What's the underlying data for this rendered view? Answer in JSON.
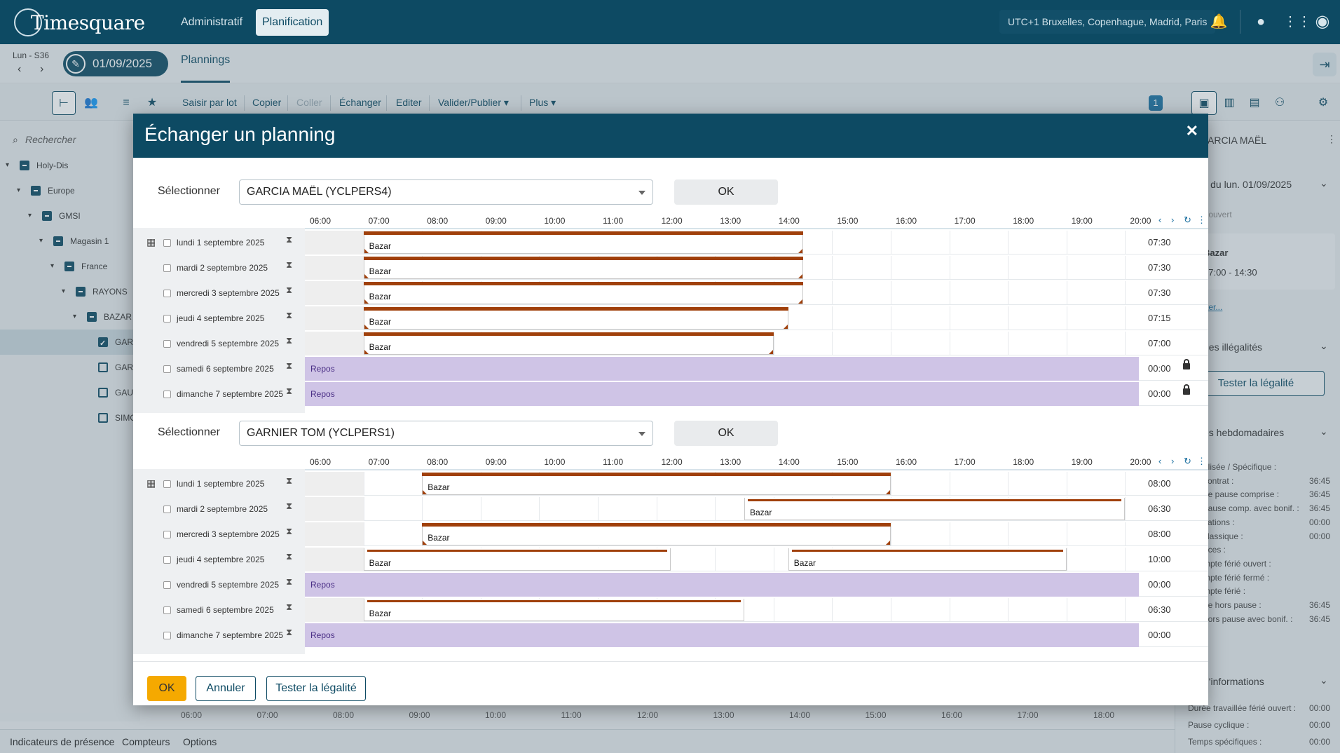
{
  "app": {
    "logo": "Timesquare",
    "nav": [
      "Administratif",
      "Planification"
    ],
    "timezone": "UTC+1 Bruxelles, Copenhague, Madrid, Paris"
  },
  "subbar": {
    "week_label": "Lun - S36",
    "date": "01/09/2025",
    "tab": "Plannings"
  },
  "toolbar": {
    "links": [
      "Saisir par lot",
      "Copier",
      "Coller",
      "Échanger",
      "Editer",
      "Valider/Publier",
      "Plus"
    ],
    "badge": "1"
  },
  "left": {
    "search_placeholder": "Rechercher",
    "tree": [
      "Holy-Dis",
      "Europe",
      "GMSI",
      "Magasin 1",
      "France",
      "RAYONS",
      "BAZAR",
      "GAR",
      "GAR",
      "GAU",
      "SIMO"
    ]
  },
  "right": {
    "person": "ARCIA MAËL",
    "day_header": "il du lun. 01/09/2025",
    "day_sub": "r ouvert",
    "shift_name": "Bazar",
    "shift_time": "07:00 - 14:30",
    "link": "ter...",
    "illeg_header": "des illégalités",
    "test_btn": "Tester la légalité",
    "weekly_header": "es hebdomadaires",
    "weekly_rows": [
      {
        "label": "alisée / Spécifique :",
        "value": ""
      },
      {
        "label": "contrat :",
        "value": "36:45"
      },
      {
        "label": "ée pause comprise :",
        "value": "36:45"
      },
      {
        "label": "pause comp. avec bonif. :",
        "value": "36:45"
      },
      {
        "label": "cations :",
        "value": "00:00"
      },
      {
        "label": "classique :",
        "value": "00:00"
      },
      {
        "label": "nces :",
        "value": ""
      },
      {
        "label": "mpte férié ouvert :",
        "value": ""
      },
      {
        "label": "mpte férié fermé :",
        "value": ""
      },
      {
        "label": "mpte férié :",
        "value": ""
      },
      {
        "label": "ée hors pause :",
        "value": "36:45"
      },
      {
        "label": "hors pause avec bonif. :",
        "value": "36:45"
      }
    ],
    "info_header": "d'informations",
    "info_rows": [
      {
        "label": "Durée travaillée férié ouvert :",
        "value": "00:00"
      },
      {
        "label": "Pause cyclique :",
        "value": "00:00"
      },
      {
        "label": "Temps spécifiques :",
        "value": "00:00"
      }
    ]
  },
  "bottom": {
    "axis": [
      "06:00",
      "07:00",
      "08:00",
      "09:00",
      "10:00",
      "11:00",
      "12:00",
      "13:00",
      "14:00",
      "15:00",
      "16:00",
      "17:00",
      "18:00"
    ],
    "tabs": [
      "Indicateurs de présence",
      "Compteurs",
      "Options"
    ]
  },
  "modal": {
    "title": "Échanger un planning",
    "select_label": "Sélectionner",
    "ok_label": "OK",
    "hours": [
      "06:00",
      "07:00",
      "08:00",
      "09:00",
      "10:00",
      "11:00",
      "12:00",
      "13:00",
      "14:00",
      "15:00",
      "16:00",
      "17:00",
      "18:00",
      "19:00",
      "20:00"
    ],
    "employees": [
      {
        "name": "GARCIA MAËL (YCLPERS4)",
        "days": [
          {
            "label": "lundi 1 septembre 2025",
            "total": "07:30",
            "shifts": [
              {
                "label": "Bazar",
                "start": "07:00",
                "end": "14:30",
                "style": "full"
              }
            ]
          },
          {
            "label": "mardi 2 septembre 2025",
            "total": "07:30",
            "shifts": [
              {
                "label": "Bazar",
                "start": "07:00",
                "end": "14:30",
                "style": "full"
              }
            ]
          },
          {
            "label": "mercredi 3 septembre 2025",
            "total": "07:30",
            "shifts": [
              {
                "label": "Bazar",
                "start": "07:00",
                "end": "14:30",
                "style": "full"
              }
            ]
          },
          {
            "label": "jeudi 4 septembre 2025",
            "total": "07:15",
            "shifts": [
              {
                "label": "Bazar",
                "start": "07:00",
                "end": "14:15",
                "style": "full"
              }
            ]
          },
          {
            "label": "vendredi 5 septembre 2025",
            "total": "07:00",
            "shifts": [
              {
                "label": "Bazar",
                "start": "07:00",
                "end": "14:00",
                "style": "full"
              }
            ]
          },
          {
            "label": "samedi 6 septembre 2025",
            "total": "00:00",
            "repos": "Repos",
            "locked": true,
            "shifts": []
          },
          {
            "label": "dimanche 7 septembre 2025",
            "total": "00:00",
            "repos": "Repos",
            "locked": true,
            "shifts": []
          }
        ]
      },
      {
        "name": "GARNIER TOM (YCLPERS1)",
        "days": [
          {
            "label": "lundi 1 septembre 2025",
            "total": "08:00",
            "shifts": [
              {
                "label": "Bazar",
                "start": "08:00",
                "end": "16:00",
                "style": "full"
              }
            ]
          },
          {
            "label": "mardi 2 septembre 2025",
            "total": "06:30",
            "shifts": [
              {
                "label": "Bazar",
                "start": "13:30",
                "end": "20:00",
                "style": "thin"
              }
            ]
          },
          {
            "label": "mercredi 3 septembre 2025",
            "total": "08:00",
            "shifts": [
              {
                "label": "Bazar",
                "start": "08:00",
                "end": "16:00",
                "style": "full"
              }
            ]
          },
          {
            "label": "jeudi 4 septembre 2025",
            "total": "10:00",
            "shifts": [
              {
                "label": "Bazar",
                "start": "07:00",
                "end": "12:15",
                "style": "thin"
              },
              {
                "label": "Bazar",
                "start": "14:15",
                "end": "19:00",
                "style": "thin"
              }
            ]
          },
          {
            "label": "vendredi 5 septembre 2025",
            "total": "00:00",
            "repos": "Repos",
            "locked": false,
            "shifts": []
          },
          {
            "label": "samedi 6 septembre 2025",
            "total": "06:30",
            "shifts": [
              {
                "label": "Bazar",
                "start": "07:00",
                "end": "13:30",
                "style": "thin"
              }
            ]
          },
          {
            "label": "dimanche 7 septembre 2025",
            "total": "00:00",
            "repos": "Repos",
            "locked": false,
            "shifts": []
          }
        ]
      }
    ],
    "footer": {
      "ok": "OK",
      "cancel": "Annuler",
      "test": "Tester la légalité"
    }
  }
}
